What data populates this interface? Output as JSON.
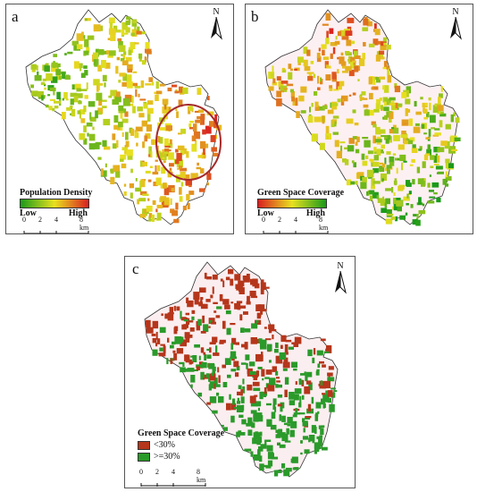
{
  "panels": [
    {
      "letter": "a",
      "legend": {
        "title": "Population Density",
        "low": "Low",
        "high": "High",
        "ramp": [
          "#1a9a1a",
          "#e8e020",
          "#d92020"
        ]
      },
      "highlight": "hotspot-ellipse"
    },
    {
      "letter": "b",
      "legend": {
        "title": "Green Space Coverage",
        "low": "Low",
        "high": "High",
        "ramp": [
          "#d92020",
          "#e8e020",
          "#1a9a1a"
        ]
      }
    },
    {
      "letter": "c",
      "legend": {
        "title": "Green Space Coverage",
        "classes": [
          {
            "label": "<30%",
            "color": "#b5361b"
          },
          {
            "label": ">=30%",
            "color": "#2a9a2a"
          }
        ]
      }
    }
  ],
  "north": "N",
  "scale": {
    "ticks": [
      "0",
      "2",
      "4",
      "8 km"
    ]
  },
  "colors": {
    "ellipse": "#a52a2a",
    "outline": "#333333"
  }
}
